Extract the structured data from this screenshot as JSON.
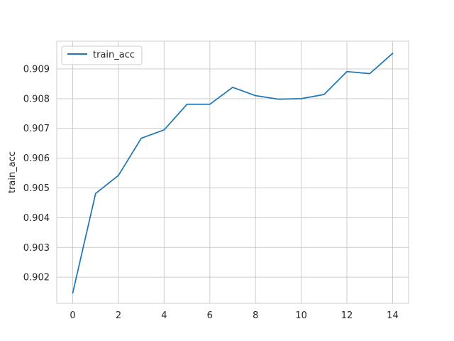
{
  "chart_data": {
    "type": "line",
    "title": "",
    "xlabel": "",
    "ylabel": "train_acc",
    "xlim": [
      -0.7,
      14.7
    ],
    "ylim": [
      0.90112,
      0.90993
    ],
    "xticks": [
      0,
      2,
      4,
      6,
      8,
      10,
      12,
      14
    ],
    "xtick_labels": [
      "0",
      "2",
      "4",
      "6",
      "8",
      "10",
      "12",
      "14"
    ],
    "yticks": [
      0.902,
      0.903,
      0.904,
      0.905,
      0.906,
      0.907,
      0.908,
      0.909
    ],
    "ytick_labels": [
      "0.902",
      "0.903",
      "0.904",
      "0.905",
      "0.906",
      "0.907",
      "0.908",
      "0.909"
    ],
    "grid": true,
    "legend": {
      "position": "top-left",
      "entries": [
        "train_acc"
      ]
    },
    "series": [
      {
        "name": "train_acc",
        "color": "#1f77b4",
        "x": [
          0,
          1,
          2,
          3,
          4,
          5,
          6,
          7,
          8,
          9,
          10,
          11,
          12,
          13,
          14
        ],
        "values": [
          0.90147,
          0.90481,
          0.90542,
          0.90667,
          0.90695,
          0.90781,
          0.90781,
          0.90838,
          0.9081,
          0.90798,
          0.908,
          0.90814,
          0.90891,
          0.90884,
          0.90952
        ]
      }
    ]
  }
}
